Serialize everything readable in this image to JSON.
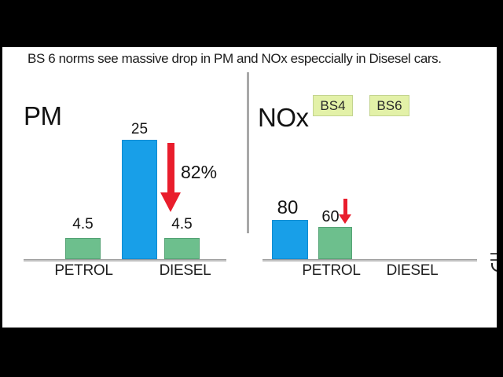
{
  "frame": {
    "title": "BS 6 norms see massive drop in PM and NOx especcially in Disesel cars."
  },
  "colors": {
    "bs4_bar_blue": "#189fe8",
    "bs6_bar_green": "#6dbf8d",
    "arrow_red": "#e91d2c",
    "legend_chip_bg": "#e3f1a8",
    "legend_chip_border": "#c3d48f",
    "divider_gray": "#a8a8a8",
    "axis_gray": "#c2c2c2",
    "letterbox": "#000000"
  },
  "chart_data": [
    {
      "type": "bar",
      "title": "PM",
      "categories": [
        "PETROL",
        "DIESEL"
      ],
      "series": [
        {
          "name": "BS4",
          "color": "#189fe8",
          "values": [
            null,
            25
          ]
        },
        {
          "name": "BS6",
          "color": "#6dbf8d",
          "values": [
            4.5,
            4.5
          ]
        }
      ],
      "annotation": "82%",
      "annotation_meaning": "drop from BS4 to BS6 diesel PM",
      "ylabel": "",
      "ylim": [
        0,
        27
      ],
      "grid": false,
      "legend_position": "none"
    },
    {
      "type": "bar",
      "title": "NOx",
      "categories": [
        "PETROL",
        "DIESEL"
      ],
      "series": [
        {
          "name": "BS4",
          "color": "#189fe8",
          "values": [
            80,
            null
          ]
        },
        {
          "name": "BS6",
          "color": "#6dbf8d",
          "values": [
            60,
            null
          ]
        }
      ],
      "legend": [
        "BS4",
        "BS6"
      ],
      "ylabel": "",
      "ylim": [
        0,
        85
      ],
      "grid": false,
      "legend_position": "top"
    }
  ]
}
